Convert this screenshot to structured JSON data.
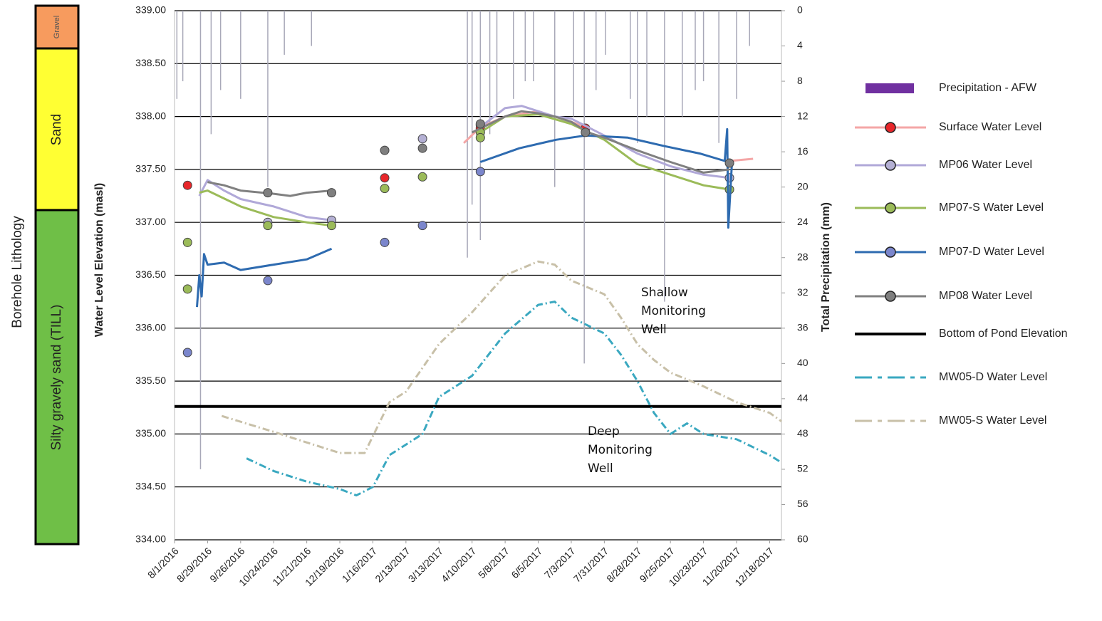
{
  "chart_data": {
    "type": "line",
    "y_label": "Water Level Elevation (masl)",
    "y2_label": "Total Precipitation (mm)",
    "xlim": [
      "8/1/2016",
      "12/28/2017"
    ],
    "xticks": [
      "8/1/2016",
      "8/29/2016",
      "9/26/2016",
      "10/24/2016",
      "11/21/2016",
      "12/19/2016",
      "1/16/2017",
      "2/13/2017",
      "3/13/2017",
      "4/10/2017",
      "5/8/2017",
      "6/5/2017",
      "7/3/2017",
      "7/31/2017",
      "8/28/2017",
      "9/25/2017",
      "10/23/2017",
      "11/20/2017",
      "12/18/2017"
    ],
    "ylim": [
      334,
      339
    ],
    "yticks": [
      {
        "value": 334,
        "label": "334.00"
      },
      {
        "value": 334.5,
        "label": "334.50"
      },
      {
        "value": 335,
        "label": "335.00"
      },
      {
        "value": 335.5,
        "label": "335.50"
      },
      {
        "value": 336,
        "label": "336.00"
      },
      {
        "value": 336.5,
        "label": "336.50"
      },
      {
        "value": 337,
        "label": "337.00"
      },
      {
        "value": 337.5,
        "label": "337.50"
      },
      {
        "value": 338,
        "label": "338.00"
      },
      {
        "value": 338.5,
        "label": "338.50"
      },
      {
        "value": 339,
        "label": "339.00"
      }
    ],
    "y2lim": [
      0,
      60
    ],
    "y2_inverted": true,
    "y2ticks": [
      0,
      4,
      8,
      12,
      16,
      20,
      24,
      28,
      32,
      36,
      40,
      44,
      48,
      52,
      56,
      60
    ],
    "grid": true,
    "legend": "right",
    "lithology": {
      "label": "Borehole Lithology",
      "layers": [
        {
          "name": "Gravel",
          "color": "#f79b5e"
        },
        {
          "name": "Sand",
          "color": "#ffff33"
        },
        {
          "name": "Silty gravely sand (TILL)",
          "color": "#6fbf47"
        }
      ]
    },
    "annotations": [
      {
        "text": "Shallow Monitoring Well"
      },
      {
        "text": "Deep Monitoring Well"
      }
    ],
    "series": [
      {
        "name": "Precipitation - AFW",
        "type": "bar",
        "axis": "y2",
        "color": "#7030a0",
        "bar_color": "#a8a8b8",
        "x": [
          "8/3/2016",
          "8/8/2016",
          "8/23/2016",
          "9/1/2016",
          "9/9/2016",
          "9/26/2016",
          "10/19/2016",
          "11/2/2016",
          "11/25/2016",
          "4/6/2017",
          "4/10/2017",
          "4/17/2017",
          "4/25/2017",
          "5/1/2017",
          "5/15/2017",
          "5/25/2017",
          "6/1/2017",
          "6/19/2017",
          "7/5/2017",
          "7/14/2017",
          "7/24/2017",
          "8/1/2017",
          "8/22/2017",
          "8/28/2017",
          "9/5/2017",
          "9/20/2017",
          "10/5/2017",
          "10/16/2017",
          "10/23/2017",
          "11/5/2017",
          "11/20/2017",
          "12/1/2017"
        ],
        "values": [
          10,
          8,
          52,
          14,
          9,
          10,
          20,
          5,
          4,
          28,
          22,
          26,
          14,
          12,
          10,
          8,
          8,
          20,
          12,
          40,
          9,
          5,
          10,
          15,
          12,
          33,
          12,
          9,
          8,
          15,
          10,
          4
        ]
      },
      {
        "name": "Surface Water Level",
        "type": "line",
        "color": "#f4a6a6",
        "marker_color": "#e8262a",
        "x": [
          "4/3/2017",
          "4/17/2017",
          "5/8/2017",
          "6/5/2017",
          "7/3/2017",
          "7/17/2017",
          null,
          "11/14/2017",
          "12/4/2017"
        ],
        "values": [
          337.75,
          337.9,
          338.0,
          338.05,
          337.95,
          337.89,
          null,
          337.58,
          337.6
        ],
        "points": {
          "x": [
            "8/12/2016",
            "1/26/2017",
            "4/17/2017",
            "4/17/2017",
            "7/15/2017"
          ],
          "values": [
            337.35,
            337.42,
            337.92,
            337.89,
            337.89
          ]
        }
      },
      {
        "name": "MP06 Water Level",
        "type": "line",
        "color": "#b0a8d8",
        "marker_color": "#b4b0d4",
        "x": [
          "8/22/2016",
          "8/29/2016",
          "9/12/2016",
          "9/26/2016",
          "10/24/2016",
          "11/7/2016",
          "11/21/2016",
          "12/12/2016",
          null,
          "4/17/2017",
          "5/8/2017",
          "5/22/2017",
          "6/5/2017",
          "6/19/2017",
          "7/3/2017",
          "7/31/2017",
          "8/28/2017",
          "9/25/2017",
          "10/23/2017",
          "11/14/2017"
        ],
        "values": [
          337.25,
          337.4,
          337.3,
          337.22,
          337.15,
          337.1,
          337.05,
          337.02,
          null,
          337.9,
          338.08,
          338.1,
          338.05,
          338.0,
          337.98,
          337.82,
          337.65,
          337.53,
          337.45,
          337.42
        ],
        "points": {
          "x": [
            "10/19/2016",
            "12/12/2016",
            "2/27/2017",
            "11/14/2017"
          ],
          "values": [
            337.0,
            337.02,
            337.79,
            337.42
          ]
        }
      },
      {
        "name": "MP07-S Water Level",
        "type": "line",
        "color": "#9bbb59",
        "marker_color": "#9bbb59",
        "x": [
          "8/22/2016",
          "8/29/2016",
          "9/26/2016",
          "10/24/2016",
          "11/21/2016",
          "12/12/2016",
          null,
          "4/17/2017",
          "5/8/2017",
          "6/5/2017",
          "7/3/2017",
          "7/31/2017",
          "8/28/2017",
          "9/25/2017",
          "10/23/2017",
          "11/14/2017"
        ],
        "values": [
          337.28,
          337.3,
          337.15,
          337.05,
          337.0,
          336.97,
          null,
          337.85,
          338.0,
          338.02,
          337.93,
          337.78,
          337.55,
          337.45,
          337.35,
          337.31
        ],
        "points": {
          "x": [
            "8/12/2016",
            "8/12/2016",
            "10/19/2016",
            "12/12/2016",
            "1/26/2017",
            "2/27/2017",
            "4/17/2017",
            "4/17/2017",
            "11/14/2017"
          ],
          "values": [
            336.81,
            336.37,
            336.97,
            336.97,
            337.32,
            337.43,
            337.85,
            337.8,
            337.31
          ]
        }
      },
      {
        "name": "MP07-D Water Level",
        "type": "line",
        "color": "#2e6bb0",
        "marker_color": "#7b86cc",
        "x": [
          "8/20/2016",
          "8/22/2016",
          "8/24/2016",
          "8/26/2016",
          "8/29/2016",
          "9/12/2016",
          "9/26/2016",
          "10/24/2016",
          "11/21/2016",
          "12/12/2016",
          null,
          "4/17/2017",
          "5/20/2017",
          "6/20/2017",
          "7/15/2017",
          "8/20/2017",
          "9/20/2017",
          "10/20/2017",
          "11/10/2017",
          "11/12/2017",
          "11/13/2017",
          "11/16/2017"
        ],
        "values": [
          336.2,
          336.5,
          336.3,
          336.7,
          336.6,
          336.62,
          336.55,
          336.6,
          336.65,
          336.75,
          null,
          337.57,
          337.7,
          337.78,
          337.82,
          337.8,
          337.72,
          337.65,
          337.58,
          337.88,
          336.95,
          337.55
        ],
        "points": {
          "x": [
            "8/12/2016",
            "10/19/2016",
            "1/26/2017",
            "2/27/2017",
            "4/17/2017"
          ],
          "values": [
            335.77,
            336.45,
            336.81,
            336.97,
            337.48
          ]
        }
      },
      {
        "name": "MP08 Water Level",
        "type": "line",
        "color": "#808080",
        "marker_color": "#7f7f7f",
        "x": [
          "8/29/2016",
          "9/12/2016",
          "9/26/2016",
          "10/24/2016",
          "11/7/2016",
          "11/21/2016",
          "12/12/2016",
          null,
          "4/10/2017",
          "5/8/2017",
          "5/22/2017",
          "6/5/2017",
          "6/19/2017",
          "7/3/2017",
          "7/17/2017",
          "7/31/2017",
          "8/28/2017",
          "9/25/2017",
          "10/23/2017",
          "11/14/2017"
        ],
        "values": [
          337.38,
          337.35,
          337.3,
          337.27,
          337.25,
          337.28,
          337.3,
          null,
          337.85,
          338.0,
          338.05,
          338.03,
          338.0,
          337.95,
          337.85,
          337.8,
          337.68,
          337.57,
          337.47,
          337.5
        ],
        "points": {
          "x": [
            "10/19/2016",
            "12/12/2016",
            "1/26/2017",
            "2/27/2017",
            "4/17/2017",
            "7/15/2017",
            "11/14/2017"
          ],
          "values": [
            337.28,
            337.28,
            337.68,
            337.7,
            337.93,
            337.85,
            337.56
          ]
        }
      },
      {
        "name": "Bottom of Pond Elevation",
        "type": "line",
        "color": "#000000",
        "width": "thick",
        "x": [
          "8/1/2016",
          "12/28/2017"
        ],
        "values": [
          335.26,
          335.26
        ]
      },
      {
        "name": "MW05-D  Water Level",
        "type": "line",
        "color": "#3aa8c0",
        "dash": "dash-dot",
        "x": [
          "10/1/2016",
          "10/24/2016",
          "11/21/2016",
          "12/19/2016",
          "1/2/2017",
          "1/16/2017",
          "1/30/2017",
          "2/27/2017",
          "3/13/2017",
          "4/10/2017",
          "5/8/2017",
          "6/5/2017",
          "6/19/2017",
          "7/3/2017",
          "7/31/2017",
          "8/14/2017",
          "8/28/2017",
          "9/11/2017",
          "9/25/2017",
          "10/9/2017",
          "10/23/2017",
          "11/20/2017",
          "12/18/2017",
          "12/28/2017"
        ],
        "values": [
          334.77,
          334.65,
          334.55,
          334.48,
          334.42,
          334.5,
          334.8,
          335.0,
          335.35,
          335.55,
          335.95,
          336.22,
          336.25,
          336.1,
          335.95,
          335.75,
          335.5,
          335.2,
          335.0,
          335.1,
          335.0,
          334.95,
          334.8,
          334.73
        ]
      },
      {
        "name": "MW05-S Water Level",
        "type": "line",
        "color": "#c8c0a8",
        "dash": "dash-dot",
        "x": [
          "9/10/2016",
          "10/24/2016",
          "11/21/2016",
          "12/19/2016",
          "1/9/2017",
          "1/30/2017",
          "2/13/2017",
          "3/13/2017",
          "4/10/2017",
          "5/8/2017",
          "6/5/2017",
          "6/19/2017",
          "7/3/2017",
          "7/31/2017",
          "8/14/2017",
          "8/28/2017",
          "9/11/2017",
          "9/25/2017",
          "10/23/2017",
          "11/20/2017",
          "12/18/2017",
          "12/28/2017"
        ],
        "values": [
          335.17,
          335.02,
          334.92,
          334.82,
          334.82,
          335.3,
          335.4,
          335.85,
          336.15,
          336.5,
          336.63,
          336.6,
          336.45,
          336.32,
          336.1,
          335.85,
          335.7,
          335.58,
          335.45,
          335.3,
          335.2,
          335.12
        ]
      }
    ]
  }
}
